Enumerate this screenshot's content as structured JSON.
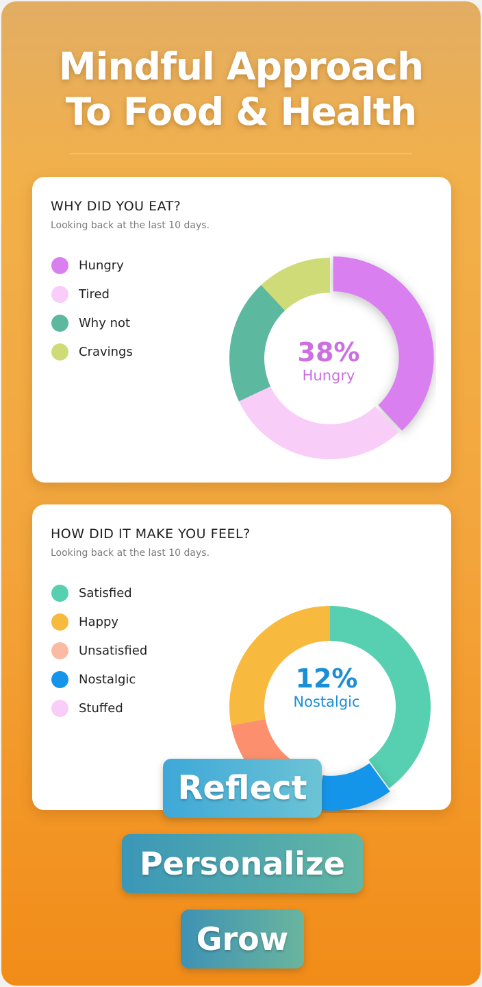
{
  "headline": {
    "line1": "Mindful Approach",
    "line2": "To Food & Health"
  },
  "cards": [
    {
      "title": "WHY DID YOU EAT?",
      "subtitle": "Looking back at the last 10 days.",
      "legend": [
        {
          "label": "Hungry",
          "color": "#da7ff0"
        },
        {
          "label": "Tired",
          "color": "#f8cdf7"
        },
        {
          "label": "Why not",
          "color": "#5cb89f"
        },
        {
          "label": "Cravings",
          "color": "#cfdb76"
        }
      ],
      "center_value": "38%",
      "center_label": "Hungry",
      "center_color": "#cc6fe0"
    },
    {
      "title": "HOW DID IT MAKE YOU FEEL?",
      "subtitle": "Looking back at the last 10 days.",
      "legend": [
        {
          "label": "Satisfied",
          "color": "#56d0b1"
        },
        {
          "label": "Happy",
          "color": "#f7b93e"
        },
        {
          "label": "Unsatisfied",
          "color": "#fbbaa3"
        },
        {
          "label": "Nostalgic",
          "color": "#1495ea"
        },
        {
          "label": "Stuffed",
          "color": "#f8cdf7"
        }
      ],
      "center_value": "12%",
      "center_label": "Nostalgic",
      "center_color": "#1b8fd6"
    }
  ],
  "chart_data": [
    {
      "type": "pie",
      "title": "WHY DID YOU EAT?",
      "categories": [
        "Hungry",
        "Tired",
        "Why not",
        "Cravings"
      ],
      "values": [
        38,
        30,
        20,
        12
      ],
      "colors": [
        "#da7ff0",
        "#f8cdf7",
        "#5cb89f",
        "#cfdb76"
      ],
      "highlight": "Hungry"
    },
    {
      "type": "pie",
      "title": "HOW DID IT MAKE YOU FEEL?",
      "categories": [
        "Satisfied",
        "Nostalgic",
        "Unsatisfied",
        "Happy",
        "Stuffed"
      ],
      "values": [
        40,
        12,
        20,
        28,
        0
      ],
      "colors": [
        "#56d0b1",
        "#1495ea",
        "#fc8f6d",
        "#f7b93e",
        "#f8cdf7"
      ],
      "highlight": "Nostalgic"
    }
  ],
  "pills": {
    "reflect": "Reflect",
    "personalize": "Personalize",
    "grow": "Grow"
  }
}
